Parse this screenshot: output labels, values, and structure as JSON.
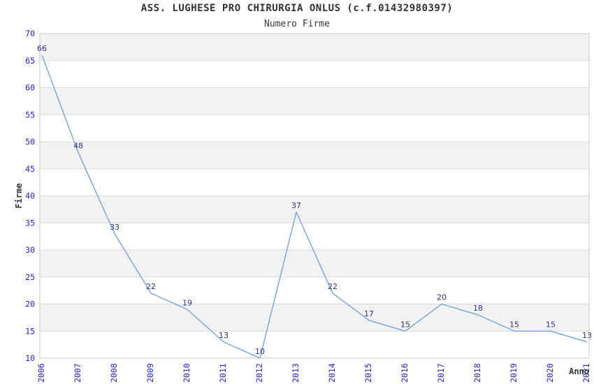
{
  "header": {
    "title": "ASS. LUGHESE PRO CHIRURGIA ONLUS (c.f.01432980397)",
    "subtitle": "Numero Firme"
  },
  "chart_data": {
    "type": "line",
    "title": "ASS. LUGHESE PRO CHIRURGIA ONLUS (c.f.01432980397)",
    "subtitle": "Numero Firme",
    "xlabel": "Anno",
    "ylabel": "Firme",
    "categories": [
      "2006",
      "2007",
      "2008",
      "2009",
      "2010",
      "2011",
      "2012",
      "2013",
      "2014",
      "2015",
      "2016",
      "2017",
      "2018",
      "2019",
      "2020",
      "2021"
    ],
    "series": [
      {
        "name": "Numero Firme",
        "values": [
          66,
          48,
          33,
          22,
          19,
          13,
          10,
          37,
          22,
          17,
          15,
          20,
          18,
          15,
          15,
          13
        ]
      }
    ],
    "ylim": [
      10,
      70
    ],
    "ytick_step": 5,
    "yticks": [
      10,
      15,
      20,
      25,
      30,
      35,
      40,
      45,
      50,
      55,
      60,
      65,
      70
    ],
    "grid": "horizontal",
    "legend": "none",
    "point_labels": true,
    "x_tick_rotation": -90,
    "colors": {
      "line": "#7da7dd",
      "point_label": "#30307d",
      "tick_label": "#2424cc",
      "axis_title": "#333333",
      "title": "#333333",
      "band": "#f2f2f2",
      "gridline": "#dcdcdc",
      "plot_border": "#c9c9c9",
      "background": "#ffffff"
    }
  }
}
